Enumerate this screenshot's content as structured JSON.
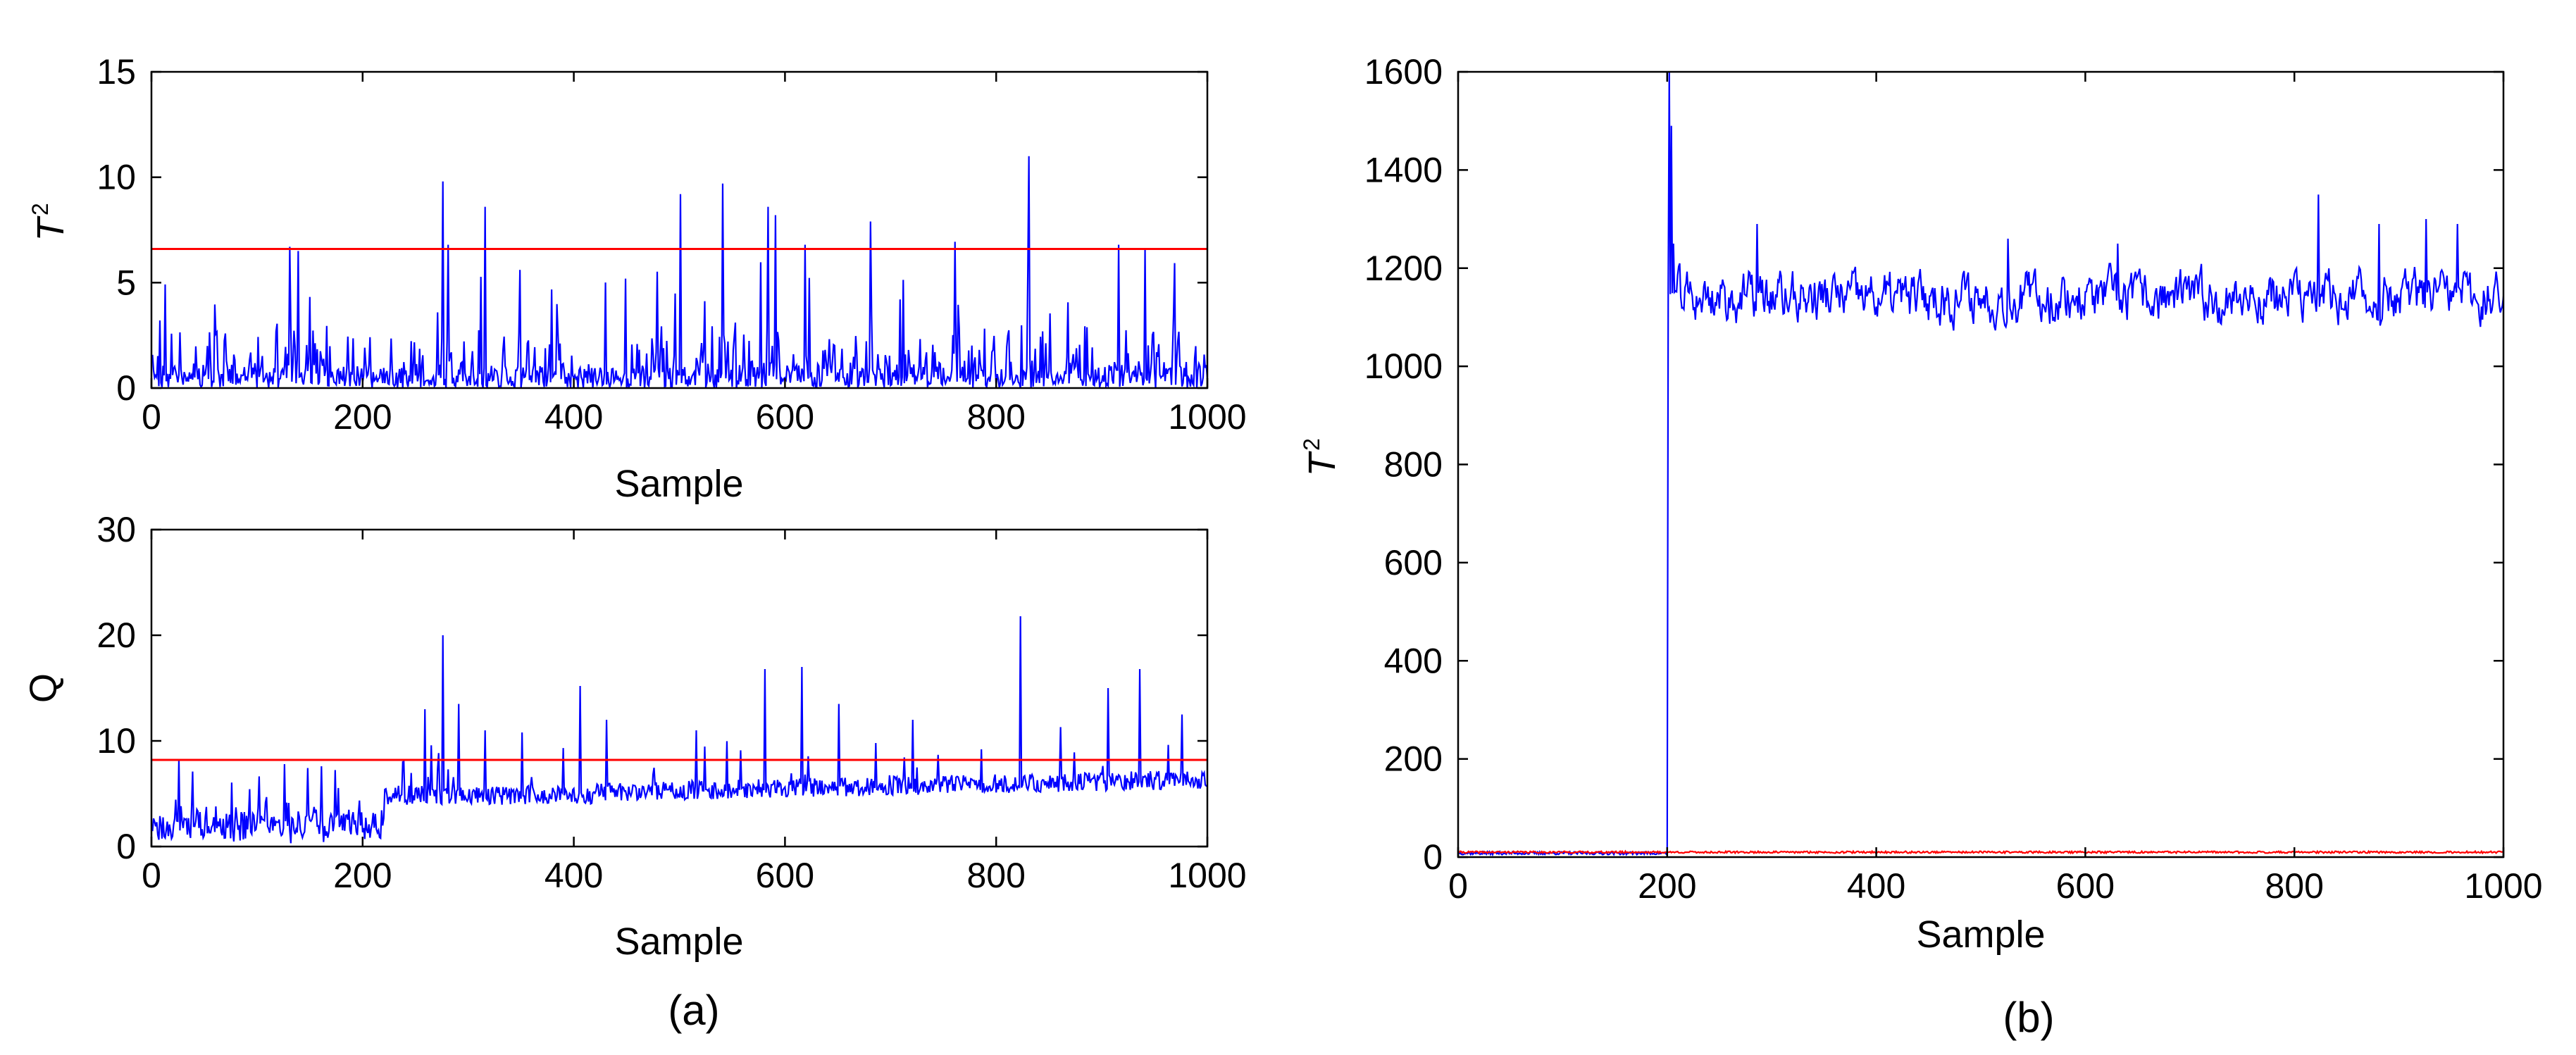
{
  "chart_data": [
    {
      "panel": "a-top",
      "type": "line",
      "xlabel": "Sample",
      "ylabel": "T",
      "ylabel_sup": "2",
      "xlim": [
        0,
        1000
      ],
      "ylim": [
        0,
        15
      ],
      "xticks": [
        0,
        200,
        400,
        600,
        800,
        1000
      ],
      "yticks": [
        0,
        5,
        10,
        15
      ],
      "control_limit": 6.6,
      "peaks": [
        [
          130,
          6.7
        ],
        [
          138,
          6.5
        ],
        [
          275,
          9.8
        ],
        [
          280,
          6.8
        ],
        [
          315,
          8.6
        ],
        [
          500,
          9.2
        ],
        [
          540,
          9.7
        ],
        [
          583,
          8.6
        ],
        [
          590,
          8.2
        ],
        [
          618,
          6.8
        ],
        [
          680,
          7.9
        ],
        [
          830,
          11.0
        ],
        [
          915,
          6.8
        ],
        [
          940,
          6.6
        ]
      ],
      "series": [
        {
          "color": "#0000ff",
          "baseline": 0.9,
          "noise": 1.6,
          "spike_rate": 0.06,
          "spike_max": 5.8,
          "seed": 11,
          "points": 1000
        }
      ]
    },
    {
      "panel": "a-bottom",
      "type": "line",
      "xlabel": "Sample",
      "ylabel": "Q",
      "xlim": [
        0,
        1000
      ],
      "ylim": [
        0,
        30
      ],
      "xticks": [
        0,
        200,
        400,
        600,
        800,
        1000
      ],
      "yticks": [
        0,
        10,
        20,
        30
      ],
      "control_limit": 8.2,
      "peaks": [
        [
          125,
          7.8
        ],
        [
          160,
          7.6
        ],
        [
          258,
          13.0
        ],
        [
          275,
          20.0
        ],
        [
          290,
          13.5
        ],
        [
          315,
          11.0
        ],
        [
          350,
          10.8
        ],
        [
          405,
          15.2
        ],
        [
          430,
          12.0
        ],
        [
          515,
          11.0
        ],
        [
          580,
          16.8
        ],
        [
          615,
          17.0
        ],
        [
          650,
          13.5
        ],
        [
          720,
          12.0
        ],
        [
          822,
          21.8
        ],
        [
          905,
          15.0
        ],
        [
          935,
          16.8
        ],
        [
          975,
          12.5
        ]
      ],
      "series": [
        {
          "color": "#0000ff",
          "baseline_start": 1.0,
          "baseline_end": 6.0,
          "noise": 1.8,
          "spike_rate": 0.05,
          "spike_max": 4.5,
          "seed": 23,
          "points": 1000
        }
      ]
    },
    {
      "panel": "b",
      "type": "line",
      "xlabel": "Sample",
      "ylabel": "T",
      "ylabel_sup": "2",
      "xlim": [
        0,
        1000
      ],
      "ylim": [
        0,
        1600
      ],
      "xticks": [
        0,
        200,
        400,
        600,
        800,
        1000
      ],
      "yticks": [
        0,
        200,
        400,
        600,
        800,
        1000,
        1200,
        1400,
        1600
      ],
      "fault_start": 200,
      "peaks": [
        [
          201,
          1600
        ],
        [
          203,
          1490
        ],
        [
          205,
          1250
        ],
        [
          285,
          1290
        ],
        [
          525,
          1260
        ],
        [
          630,
          1250
        ],
        [
          822,
          1350
        ],
        [
          880,
          1290
        ],
        [
          925,
          1300
        ],
        [
          955,
          1290
        ]
      ],
      "series": [
        {
          "color": "#0000ff",
          "pre_fault_level": 5,
          "post_fault_mean": 1140,
          "post_fault_noise": 60,
          "seed": 37,
          "points": 1000
        },
        {
          "color": "#ff0000",
          "level": 10,
          "noise": 4,
          "seed": 41,
          "points": 1000
        }
      ]
    }
  ],
  "panel_labels": {
    "a": "(a)",
    "b": "(b)"
  }
}
